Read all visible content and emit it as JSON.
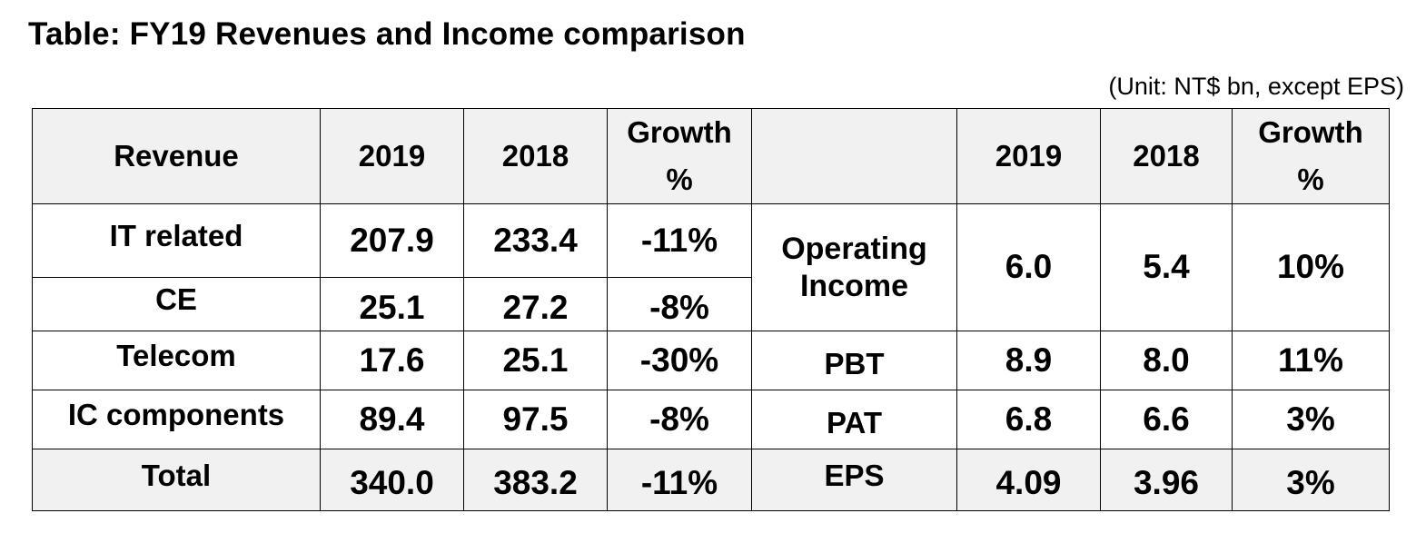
{
  "title": "Table: FY19 Revenues and Income comparison",
  "unit_note": "(Unit: NT$ bn, except EPS)",
  "header": {
    "revenue": "Revenue",
    "y2019_left": "2019",
    "y2018_left": "2018",
    "growth_left_line1": "Growth",
    "growth_left_line2": "%",
    "blank": "",
    "y2019_right": "2019",
    "y2018_right": "2018",
    "growth_right_line1": "Growth",
    "growth_right_line2": "%"
  },
  "revenue_rows": [
    {
      "label": "IT related",
      "y2019": "207.9",
      "y2018": "233.4",
      "growth": "-11%"
    },
    {
      "label": "CE",
      "y2019": "25.1",
      "y2018": "27.2",
      "growth": "-8%"
    },
    {
      "label": "Telecom",
      "y2019": "17.6",
      "y2018": "25.1",
      "growth": "-30%"
    },
    {
      "label": "IC components",
      "y2019": "89.4",
      "y2018": "97.5",
      "growth": "-8%"
    },
    {
      "label": "Total",
      "y2019": "340.0",
      "y2018": "383.2",
      "growth": "-11%"
    }
  ],
  "income_rows": [
    {
      "label_line1": "Operating",
      "label_line2": "Income",
      "y2019": "6.0",
      "y2018": "5.4",
      "growth": "10%"
    },
    {
      "label": "PBT",
      "y2019": "8.9",
      "y2018": "8.0",
      "growth": "11%"
    },
    {
      "label": "PAT",
      "y2019": "6.8",
      "y2018": "6.6",
      "growth": "3%"
    },
    {
      "label": "EPS",
      "y2019": "4.09",
      "y2018": "3.96",
      "growth": "3%"
    }
  ],
  "colors": {
    "header_background": "#f1f1f1",
    "border": "#000000"
  }
}
